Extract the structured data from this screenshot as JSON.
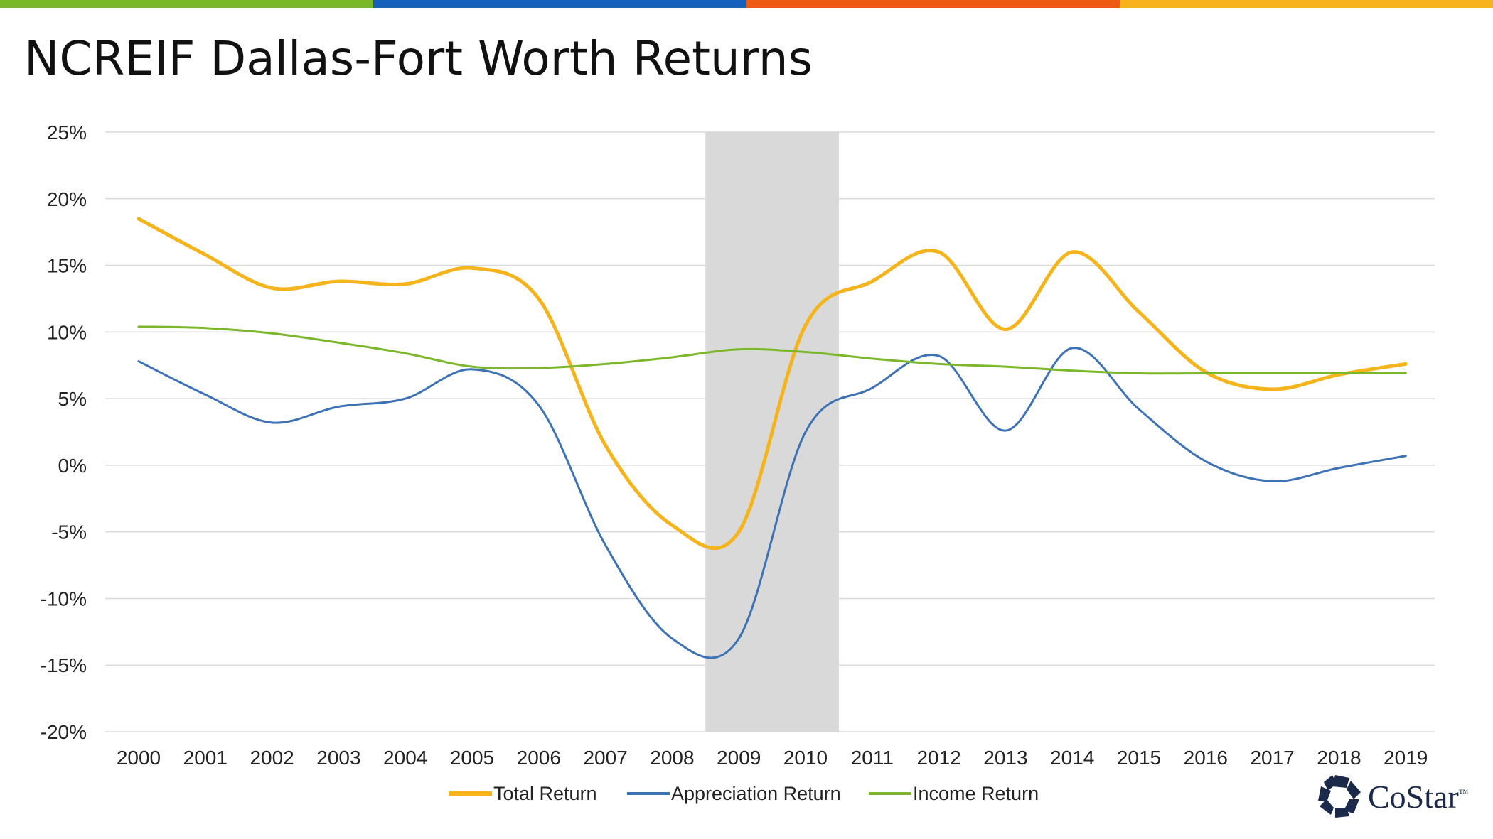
{
  "title": "NCREIF Dallas-Fort Worth Returns",
  "brand": {
    "top_bar_colors": [
      "#79b928",
      "#1560bd",
      "#ef5a12",
      "#f7b21c"
    ],
    "logo_text": "CoStar",
    "logo_mark": "™",
    "logo_color": "#1b2a4a"
  },
  "chart_data": {
    "type": "line",
    "x": [
      "2000",
      "2001",
      "2002",
      "2003",
      "2004",
      "2005",
      "2006",
      "2007",
      "2008",
      "2009",
      "2010",
      "2011",
      "2012",
      "2013",
      "2014",
      "2015",
      "2016",
      "2017",
      "2018",
      "2019"
    ],
    "ylim": [
      -20,
      25
    ],
    "yticks": [
      25,
      20,
      15,
      10,
      5,
      0,
      -5,
      -10,
      -15,
      -20
    ],
    "ytick_labels": [
      "25%",
      "20%",
      "15%",
      "10%",
      "5%",
      "0%",
      "-5%",
      "-10%",
      "-15%",
      "-20%"
    ],
    "grid": true,
    "legend": "bottom",
    "shaded_region": {
      "from": 2008.5,
      "to": 2010.5,
      "color": "#d9d9d9"
    },
    "series": [
      {
        "name": "Total Return",
        "color": "#f5b41b",
        "values": [
          18.5,
          15.8,
          13.3,
          13.8,
          13.6,
          14.8,
          12.5,
          1.5,
          -4.5,
          -5.0,
          10.5,
          13.8,
          16.0,
          10.2,
          16.0,
          11.5,
          7.0,
          5.7,
          6.8,
          7.6
        ]
      },
      {
        "name": "Appreciation Return",
        "color": "#3d72b4",
        "values": [
          7.8,
          5.3,
          3.2,
          4.4,
          5.0,
          7.2,
          4.5,
          -6.0,
          -13.0,
          -13.0,
          2.5,
          5.8,
          8.2,
          2.6,
          8.8,
          4.2,
          0.3,
          -1.2,
          -0.2,
          0.7
        ]
      },
      {
        "name": "Income Return",
        "color": "#7cb72b",
        "values": [
          10.4,
          10.3,
          9.9,
          9.2,
          8.4,
          7.4,
          7.3,
          7.6,
          8.1,
          8.7,
          8.5,
          8.0,
          7.6,
          7.4,
          7.1,
          6.9,
          6.9,
          6.9,
          6.9,
          6.9
        ]
      }
    ]
  }
}
